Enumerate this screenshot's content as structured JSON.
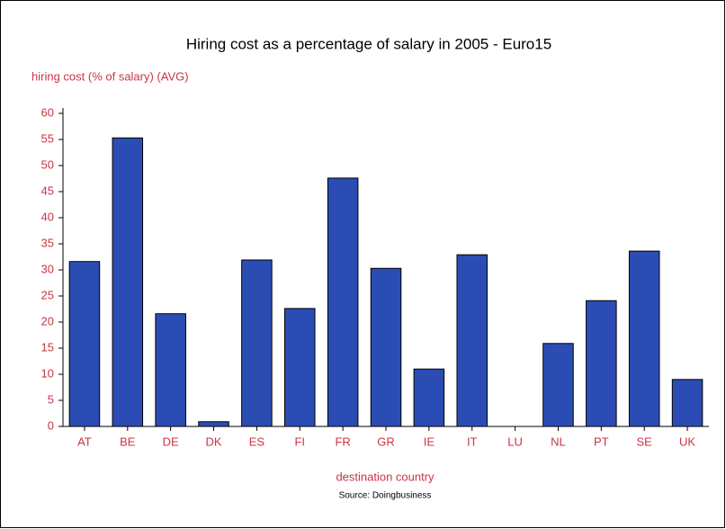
{
  "chart_data": {
    "type": "bar",
    "title": "Hiring cost as a percentage of salary in 2005 - Euro15",
    "y_label": "hiring cost (% of salary) (AVG)",
    "x_label": "destination country",
    "source": "Source: Doingbusiness",
    "categories": [
      "AT",
      "BE",
      "DE",
      "DK",
      "ES",
      "FI",
      "FR",
      "GR",
      "IE",
      "IT",
      "LU",
      "NL",
      "PT",
      "SE",
      "UK"
    ],
    "values": [
      31.6,
      55.3,
      21.6,
      0.9,
      31.9,
      22.6,
      47.6,
      30.3,
      11.0,
      32.9,
      0,
      15.9,
      24.1,
      33.6,
      9.0
    ],
    "color": "#2b4db3",
    "ylim": [
      0,
      60
    ],
    "yticks": [
      0,
      5,
      10,
      15,
      20,
      25,
      30,
      35,
      40,
      45,
      50,
      55,
      60
    ]
  }
}
